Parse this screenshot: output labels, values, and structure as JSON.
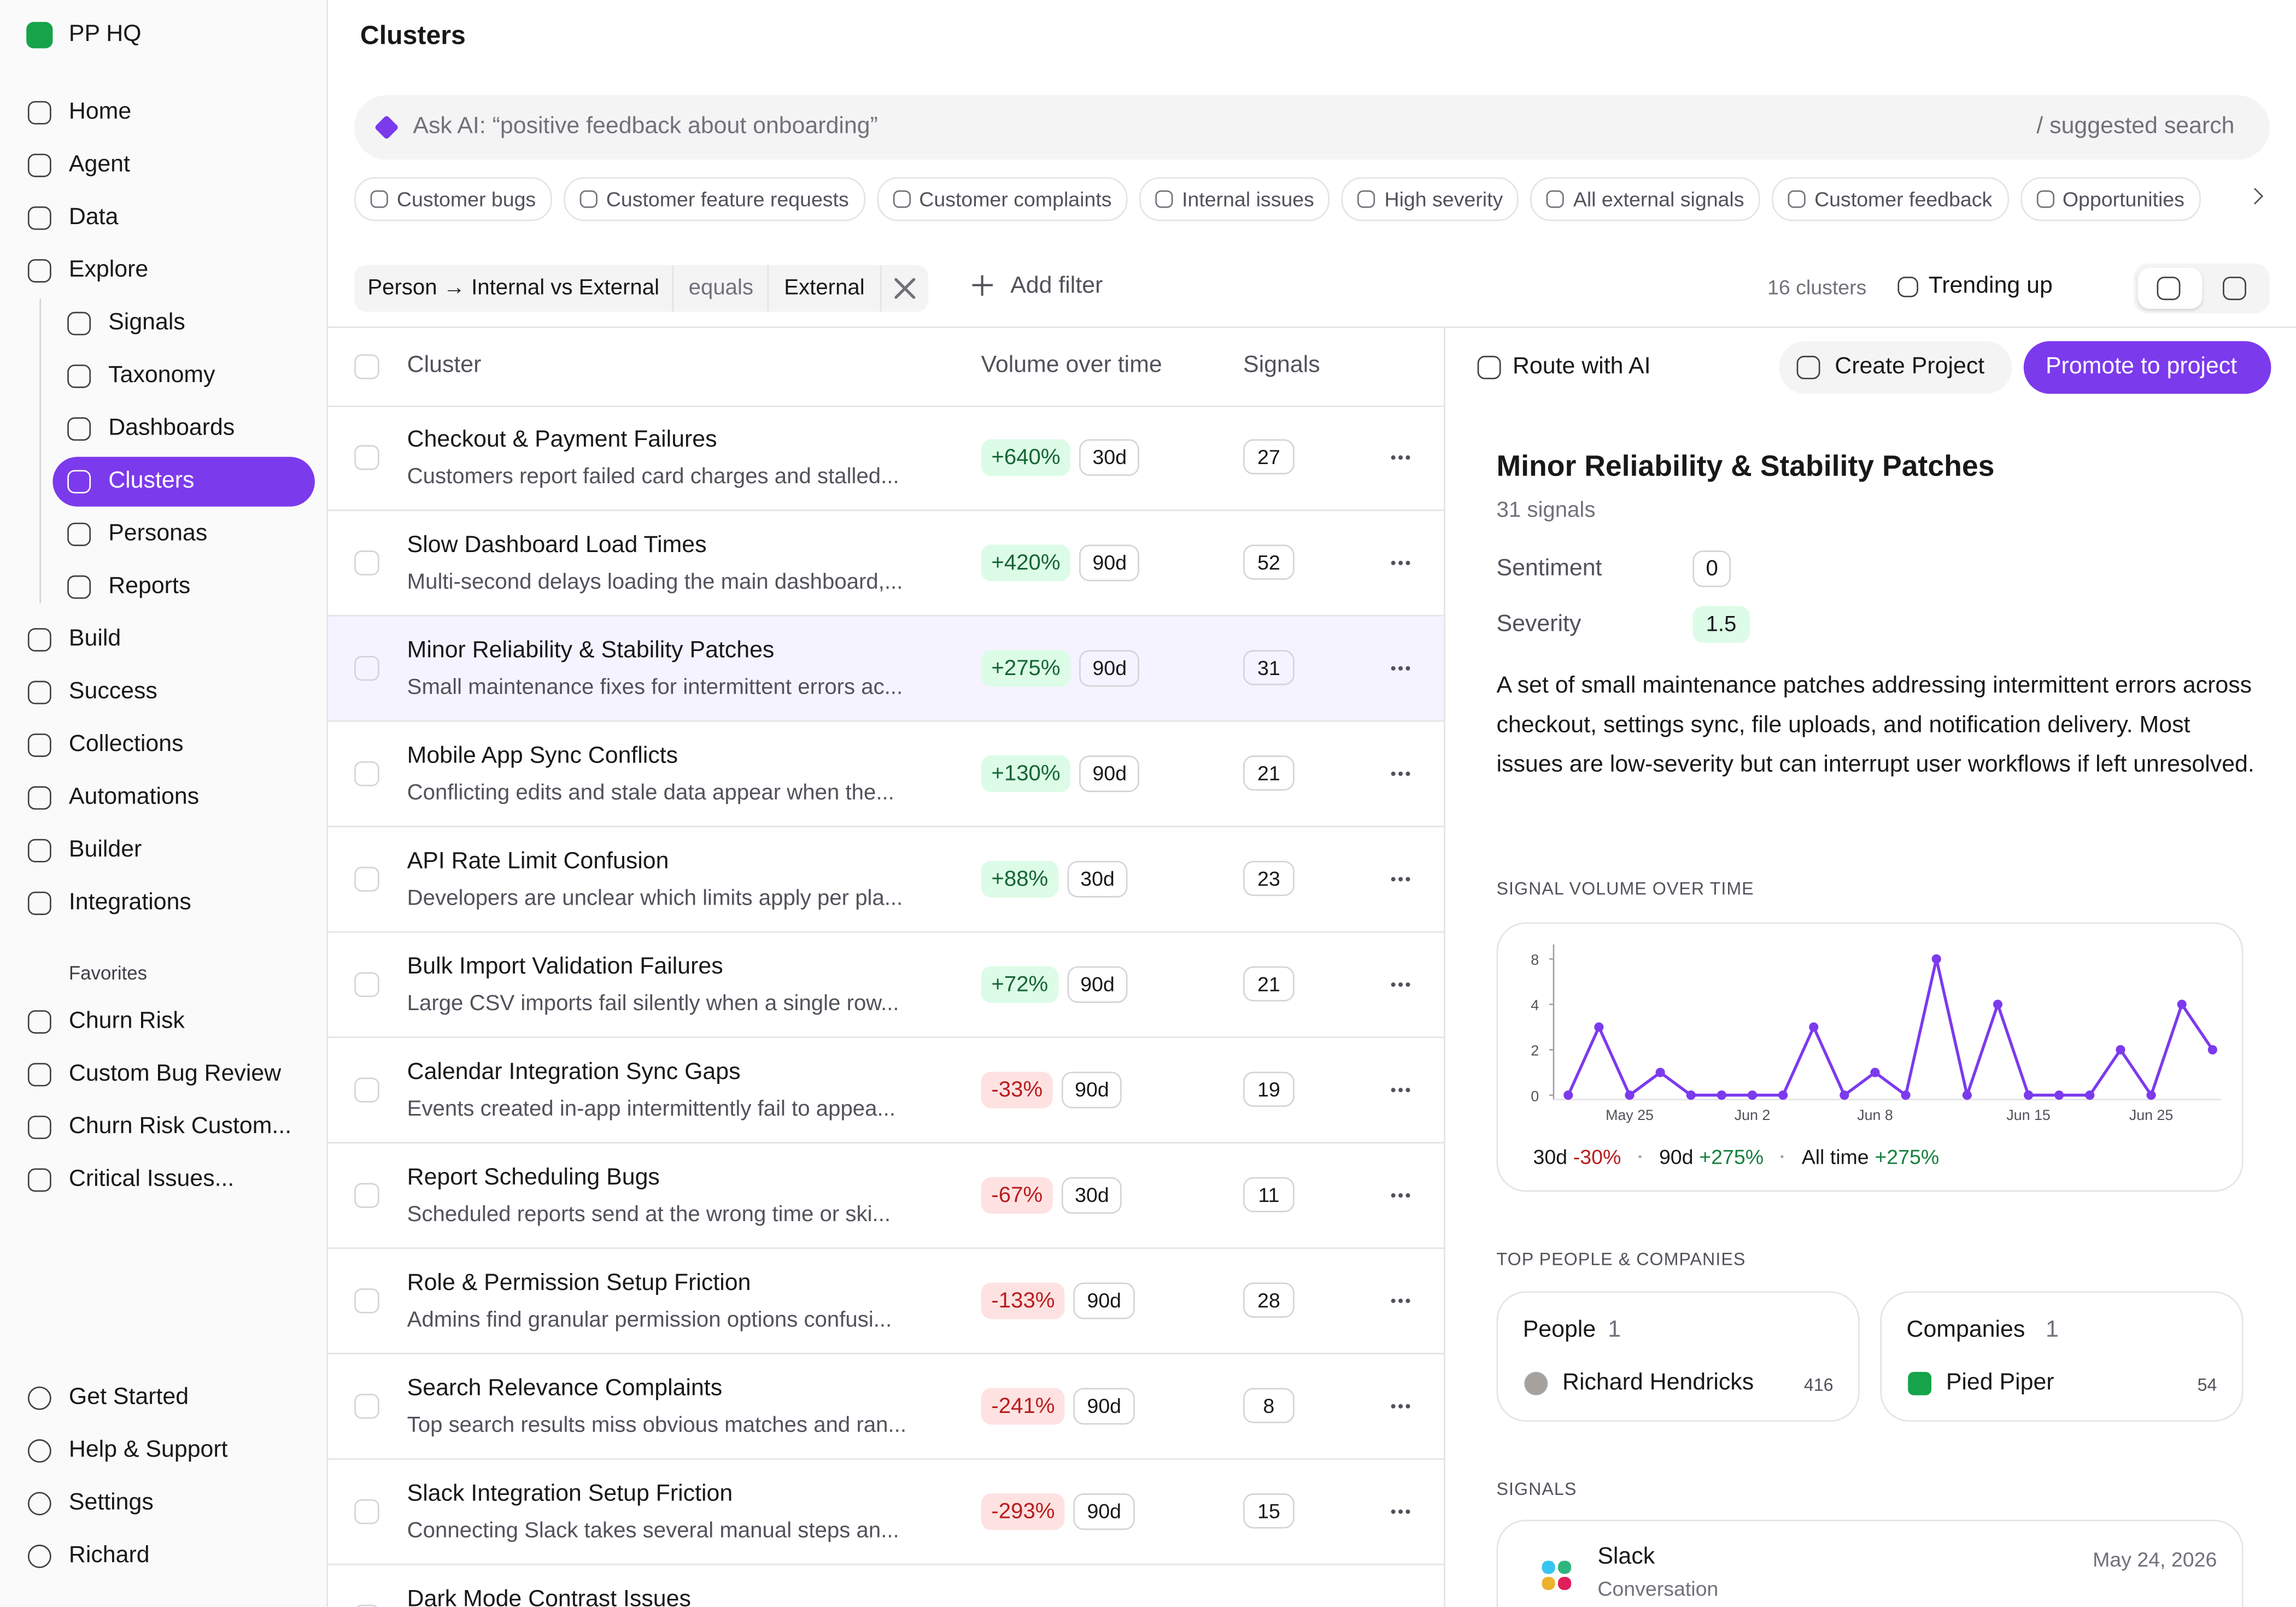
{
  "sidebar": {
    "workspace": "PP HQ",
    "nav": [
      "Home",
      "Agent",
      "Data",
      "Explore",
      "Signals",
      "Taxonomy",
      "Dashboards",
      "Clusters",
      "Personas",
      "Reports",
      "Build",
      "Success",
      "Collections",
      "Automations",
      "Builder",
      "Integrations"
    ],
    "favorites_title": "Favorites",
    "favorites": [
      "Churn Risk",
      "Custom Bug Review",
      "Churn Risk Custom...",
      "Critical Issues..."
    ],
    "footer": [
      "Get Started",
      "Help & Support",
      "Settings",
      "Richard"
    ]
  },
  "header": {
    "title": "Clusters",
    "search_placeholder": "Ask AI: “positive feedback about onboarding”",
    "search_hint": "/ suggested search",
    "chips": [
      "Customer bugs",
      "Customer feature requests",
      "Customer complaints",
      "Internal issues",
      "High severity",
      "All external signals",
      "Customer feedback",
      "Opportunities"
    ],
    "filter": {
      "field": "Person → Internal vs External",
      "op": "equals",
      "value": "External"
    },
    "add_filter": "Add filter",
    "count": "16 clusters",
    "sort": "Trending up"
  },
  "table": {
    "columns": [
      "Cluster",
      "Volume over time",
      "Signals"
    ],
    "rows": [
      {
        "title": "Checkout & Payment Failures",
        "desc": "Customers report failed card charges and stalled...",
        "change": "+640%",
        "period": "30d",
        "signals": 27
      },
      {
        "title": "Slow Dashboard Load Times",
        "desc": "Multi-second delays loading the main dashboard,...",
        "change": "+420%",
        "period": "90d",
        "signals": 52
      },
      {
        "title": "Minor Reliability & Stability Patches",
        "desc": "Small maintenance fixes for intermittent errors ac...",
        "change": "+275%",
        "period": "90d",
        "signals": 31
      },
      {
        "title": "Mobile App Sync Conflicts",
        "desc": "Conflicting edits and stale data appear when the...",
        "change": "+130%",
        "period": "90d",
        "signals": 21
      },
      {
        "title": "API Rate Limit Confusion",
        "desc": "Developers are unclear which limits apply per pla...",
        "change": "+88%",
        "period": "30d",
        "signals": 23
      },
      {
        "title": "Bulk Import Validation Failures",
        "desc": "Large CSV imports fail silently when a single row...",
        "change": "+72%",
        "period": "90d",
        "signals": 21
      },
      {
        "title": "Calendar Integration Sync Gaps",
        "desc": "Events created in-app intermittently fail to appea...",
        "change": "-33%",
        "period": "90d",
        "signals": 19
      },
      {
        "title": "Report Scheduling Bugs",
        "desc": "Scheduled reports send at the wrong time or ski...",
        "change": "-67%",
        "period": "30d",
        "signals": 11
      },
      {
        "title": "Role & Permission Setup Friction",
        "desc": "Admins find granular permission options confusi...",
        "change": "-133%",
        "period": "90d",
        "signals": 28
      },
      {
        "title": "Search Relevance Complaints",
        "desc": "Top search results miss obvious matches and ran...",
        "change": "-241%",
        "period": "90d",
        "signals": 8
      },
      {
        "title": "Slack Integration Setup Friction",
        "desc": "Connecting Slack takes several manual steps an...",
        "change": "-293%",
        "period": "90d",
        "signals": 15
      }
    ],
    "partial_row": "Dark Mode Contrast Issues"
  },
  "detail": {
    "actions": [
      "Route with AI",
      "Create Project",
      "Promote to project"
    ],
    "title": "Minor Reliability & Stability Patches",
    "subtitle": "31 signals",
    "fields": [
      {
        "label": "Sentiment",
        "value": 0
      },
      {
        "label": "Severity",
        "value": 1.5
      }
    ],
    "description": "A set of small maintenance patches addressing intermittent errors across checkout, settings sync, file uploads, and notification delivery. Most issues are low-severity but can interrupt user workflows if left unresolved.",
    "chart_title": "SIGNAL VOLUME OVER TIME",
    "stats": [
      {
        "label": "30d",
        "value": "-30%"
      },
      {
        "label": "90d",
        "value": "+275%"
      },
      {
        "label": "All time",
        "value": "+275%"
      }
    ],
    "top_title": "TOP PEOPLE & COMPANIES",
    "people": {
      "title": "People",
      "count": 1,
      "name": "Richard Hendricks",
      "value": 416
    },
    "companies": {
      "title": "Companies",
      "count": 1,
      "name": "Pied Piper",
      "value": 54
    },
    "signals_title": "SIGNALS",
    "signal": {
      "source": "Slack",
      "type": "Conversation",
      "date": "May 24, 2026"
    }
  },
  "chart_data": {
    "type": "line",
    "categories": [
      null,
      null,
      "May 25",
      null,
      null,
      null,
      "Jun 2",
      null,
      null,
      null,
      "Jun 8",
      null,
      null,
      null,
      null,
      "Jun 15",
      null,
      null,
      null,
      "Jun 25",
      null,
      null
    ],
    "series": [
      {
        "name": "Signals",
        "color": "#7c3aed",
        "values": [
          0,
          3,
          0,
          1,
          0,
          0,
          0,
          0,
          3,
          0,
          1,
          0,
          8,
          0,
          4,
          0,
          0,
          0,
          2,
          0,
          4,
          2
        ]
      }
    ],
    "ylim": [
      0,
      8
    ],
    "yticks": [
      0,
      2,
      4,
      8
    ]
  }
}
